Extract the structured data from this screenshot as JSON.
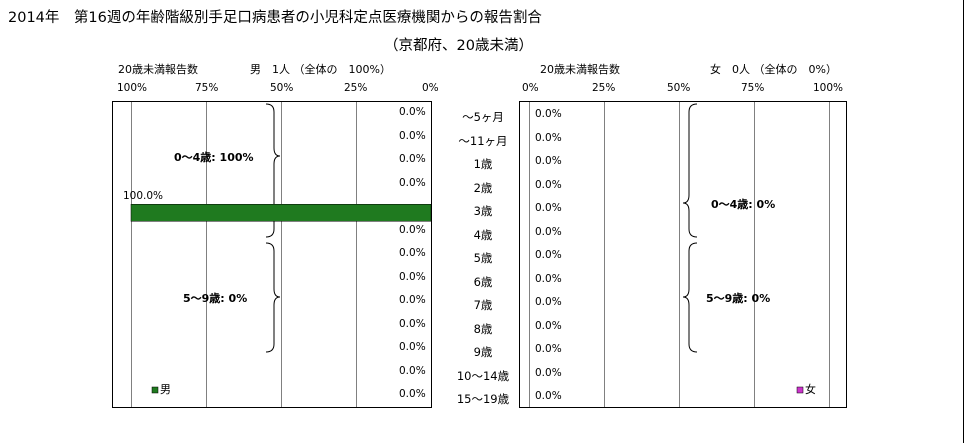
{
  "title": {
    "line1": "2014年　第16週の年齢階級別手足口病患者の小児科定点医療機関からの報告割合",
    "line2": "（京都府、20歳未満）"
  },
  "colors": {
    "male_bar": "#1f7a1f",
    "female_bar": "#cc33cc",
    "grid": "#808080",
    "frame": "#000000"
  },
  "male": {
    "count_label": "20歳未満報告数",
    "summary": "男　1人 （全体の　100%）",
    "axis_ticks": [
      "100%",
      "75%",
      "50%",
      "25%",
      "0%"
    ],
    "legend": "男",
    "group_labels": [
      "0～4歳: 100%",
      "5～9歳: 0%"
    ],
    "value_labels": [
      "0.0%",
      "0.0%",
      "0.0%",
      "0.0%",
      "100.0%",
      "0.0%",
      "0.0%",
      "0.0%",
      "0.0%",
      "0.0%",
      "0.0%",
      "0.0%",
      "0.0%"
    ]
  },
  "female": {
    "count_label": "20歳未満報告数",
    "summary": "女　0人 （全体の　0%）",
    "axis_ticks": [
      "0%",
      "25%",
      "50%",
      "75%",
      "100%"
    ],
    "legend": "女",
    "group_labels": [
      "0～4歳: 0%",
      "5～9歳: 0%"
    ],
    "value_labels": [
      "0.0%",
      "0.0%",
      "0.0%",
      "0.0%",
      "0.0%",
      "0.0%",
      "0.0%",
      "0.0%",
      "0.0%",
      "0.0%",
      "0.0%",
      "0.0%",
      "0.0%"
    ]
  },
  "chart_data": {
    "type": "bar",
    "categories": [
      "～5ヶ月",
      "～11ヶ月",
      "1歳",
      "2歳",
      "3歳",
      "4歳",
      "5歳",
      "6歳",
      "7歳",
      "8歳",
      "9歳",
      "10～14歳",
      "15～19歳"
    ],
    "series": [
      {
        "name": "男",
        "values": [
          0,
          0,
          0,
          0,
          100,
          0,
          0,
          0,
          0,
          0,
          0,
          0,
          0
        ]
      },
      {
        "name": "女",
        "values": [
          0,
          0,
          0,
          0,
          0,
          0,
          0,
          0,
          0,
          0,
          0,
          0,
          0
        ]
      }
    ],
    "xlim": [
      0,
      100
    ]
  }
}
